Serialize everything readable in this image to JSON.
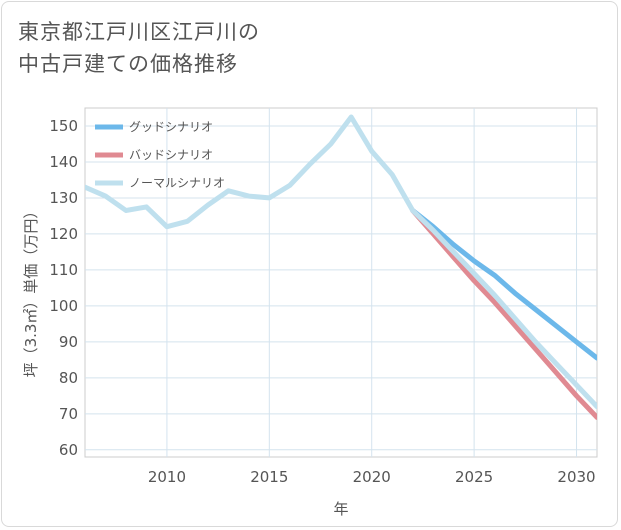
{
  "title_lines": [
    "東京都江戸川区江戸川の",
    "中古戸建ての価格推移"
  ],
  "chart_data": {
    "type": "line",
    "title": "東京都江戸川区江戸川の中古戸建ての価格推移",
    "xlabel": "年",
    "ylabel": "坪（3.3㎡）単価（万円）",
    "xlim": [
      2006,
      2031
    ],
    "ylim": [
      58,
      155
    ],
    "xticks": [
      2010,
      2015,
      2020,
      2025,
      2030
    ],
    "yticks": [
      60,
      70,
      80,
      90,
      100,
      110,
      120,
      130,
      140,
      150
    ],
    "grid": true,
    "legend_position": "top-left",
    "series": [
      {
        "name": "グッドシナリオ",
        "color": "#6cb8ea",
        "x": [
          2022,
          2023,
          2024,
          2025,
          2026,
          2027,
          2028,
          2029,
          2030,
          2031
        ],
        "y": [
          126.5,
          122.0,
          117.0,
          112.5,
          108.5,
          103.5,
          99.0,
          94.5,
          90.0,
          85.5
        ]
      },
      {
        "name": "バッドシナリオ",
        "color": "#e08a92",
        "x": [
          2022,
          2023,
          2024,
          2025,
          2026,
          2027,
          2028,
          2029,
          2030,
          2031
        ],
        "y": [
          126.5,
          120.0,
          113.5,
          107.0,
          101.0,
          94.5,
          88.0,
          81.5,
          75.0,
          69.0
        ]
      },
      {
        "name": "ノーマルシナリオ",
        "color": "#bfe0ee",
        "x": [
          2006,
          2007,
          2008,
          2009,
          2010,
          2011,
          2012,
          2013,
          2014,
          2015,
          2016,
          2017,
          2018,
          2019,
          2020,
          2021,
          2022,
          2023,
          2024,
          2025,
          2026,
          2027,
          2028,
          2029,
          2030,
          2031
        ],
        "y": [
          133.0,
          130.5,
          126.5,
          127.5,
          122.0,
          123.5,
          128.0,
          132.0,
          130.5,
          130.0,
          133.5,
          139.5,
          145.0,
          152.5,
          143.0,
          136.5,
          126.5,
          121.0,
          115.0,
          109.0,
          103.0,
          96.5,
          90.0,
          84.0,
          78.0,
          72.0
        ]
      }
    ]
  }
}
